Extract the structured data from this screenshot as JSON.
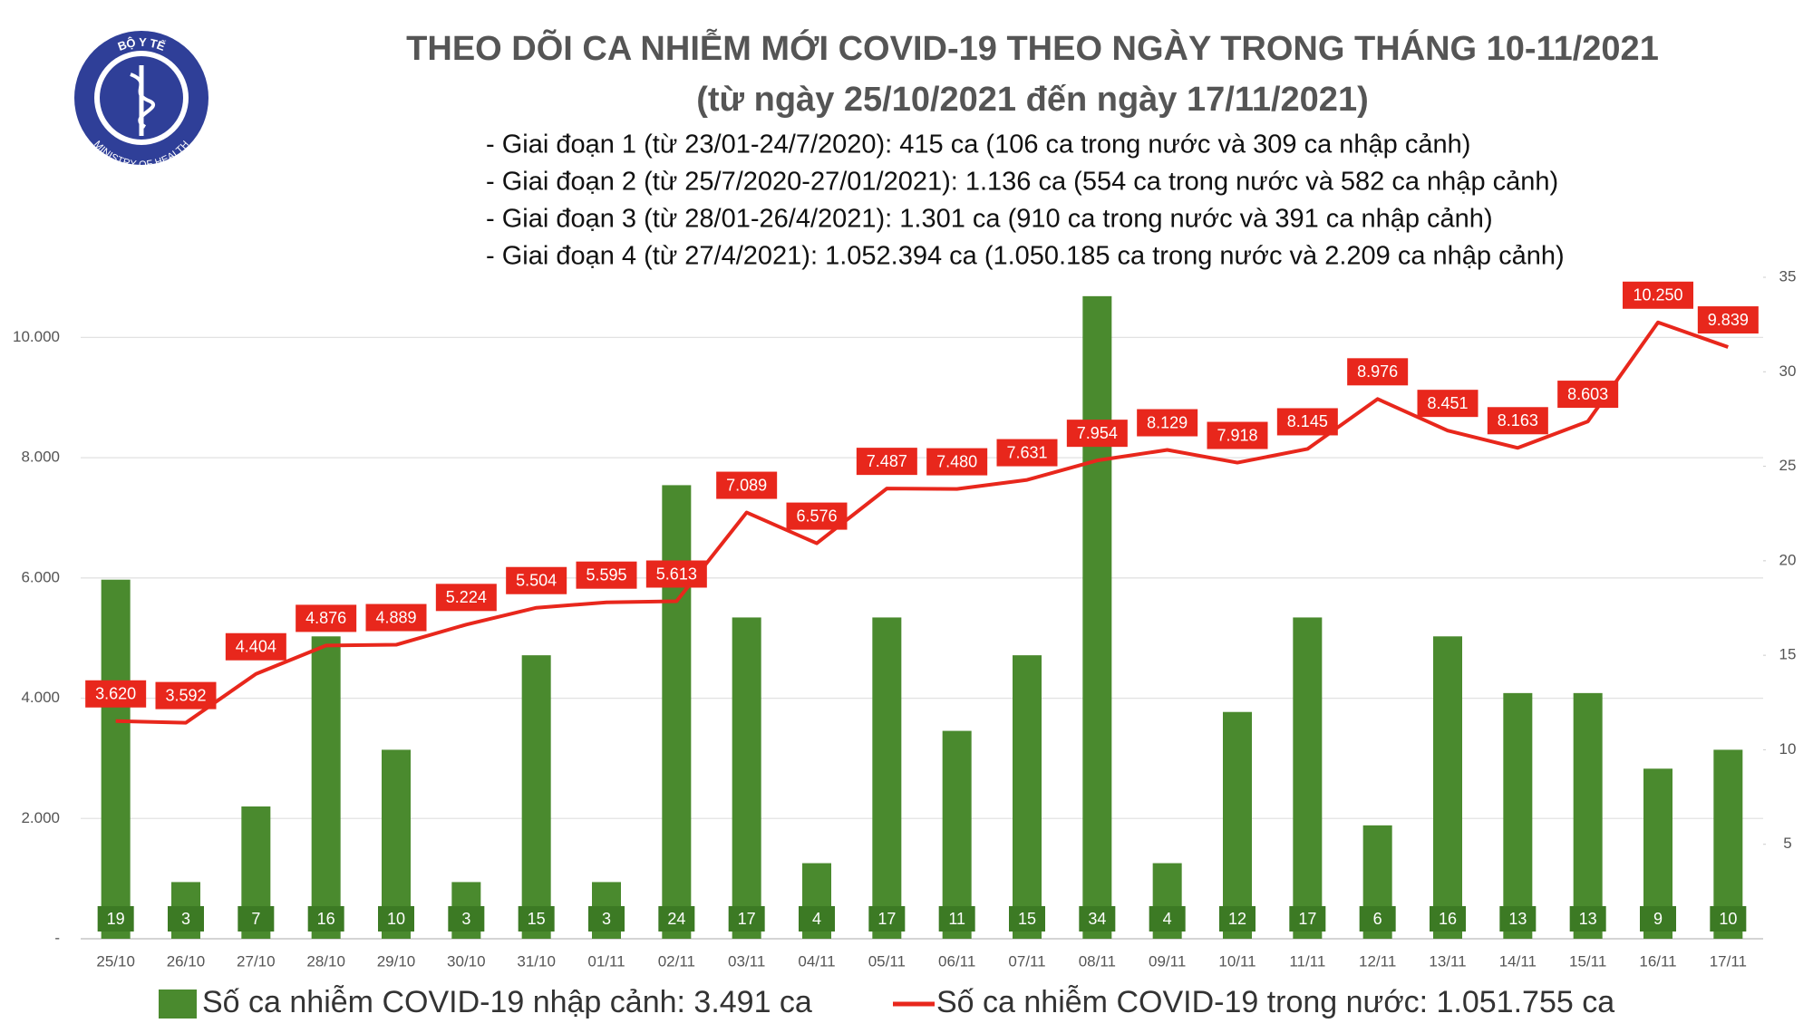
{
  "logo": {
    "top": "BỘ Y TẾ",
    "bottom": "MINISTRY OF HEALTH"
  },
  "chart_data": {
    "type": "bar-line",
    "title": "THEO DÕI CA NHIỄM MỚI COVID-19 THEO NGÀY TRONG THÁNG 10-11/2021",
    "subtitle": "(từ ngày 25/10/2021 đến ngày 17/11/2021)",
    "annotations": [
      "- Giai đoạn 1 (từ 23/01-24/7/2020): 415 ca (106 ca trong nước và 309 ca nhập cảnh)",
      "- Giai đoạn 2 (từ 25/7/2020-27/01/2021): 1.136 ca (554 ca trong nước và 582 ca nhập cảnh)",
      "- Giai đoạn 3 (từ 28/01-26/4/2021): 1.301 ca (910 ca trong nước và 391 ca nhập cảnh)",
      "- Giai đoạn 4 (từ 27/4/2021): 1.052.394 ca (1.050.185 ca trong nước và 2.209 ca nhập cảnh)"
    ],
    "categories": [
      "25/10",
      "26/10",
      "27/10",
      "28/10",
      "29/10",
      "30/10",
      "31/10",
      "01/11",
      "02/11",
      "03/11",
      "04/11",
      "05/11",
      "06/11",
      "07/11",
      "08/11",
      "09/11",
      "10/11",
      "11/11",
      "12/11",
      "13/11",
      "14/11",
      "15/11",
      "16/11",
      "17/11"
    ],
    "series": [
      {
        "name": "Số ca nhiễm COVID-19 nhập cảnh: 3.491 ca",
        "type": "bar",
        "axis": "y2",
        "color": "#4a8a2e",
        "values": [
          19,
          3,
          7,
          16,
          10,
          3,
          15,
          3,
          24,
          17,
          4,
          17,
          11,
          15,
          34,
          4,
          12,
          17,
          6,
          16,
          13,
          13,
          9,
          10
        ]
      },
      {
        "name": "Số ca nhiễm COVID-19 trong nước: 1.051.755 ca",
        "type": "line",
        "color": "#e8271c",
        "values": [
          3620,
          3592,
          4404,
          4876,
          4889,
          5224,
          5504,
          5595,
          5613,
          7089,
          6576,
          7487,
          7480,
          7631,
          7954,
          8129,
          7918,
          8145,
          8976,
          8451,
          8163,
          8603,
          10250,
          9839
        ],
        "value_labels": [
          "3.620",
          "3.592",
          "4.404",
          "4.876",
          "4.889",
          "5.224",
          "5.504",
          "5.595",
          "5.613",
          "7.089",
          "6.576",
          "7.487",
          "7.480",
          "7.631",
          "7.954",
          "8.129",
          "7.918",
          "8.145",
          "8.976",
          "8.451",
          "8.163",
          "8.603",
          "10.250",
          "9.839"
        ]
      }
    ],
    "ylim": [
      0,
      11000
    ],
    "yticks": [
      {
        "value": 0,
        "label": "-"
      },
      {
        "value": 2000,
        "label": "2.000"
      },
      {
        "value": 4000,
        "label": "4.000"
      },
      {
        "value": 6000,
        "label": "6.000"
      },
      {
        "value": 8000,
        "label": "8.000"
      },
      {
        "value": 10000,
        "label": "10.000"
      }
    ],
    "y2lim": [
      0,
      35
    ],
    "y2ticks": [
      5,
      10,
      15,
      20,
      25,
      30,
      35
    ],
    "grid": true
  }
}
